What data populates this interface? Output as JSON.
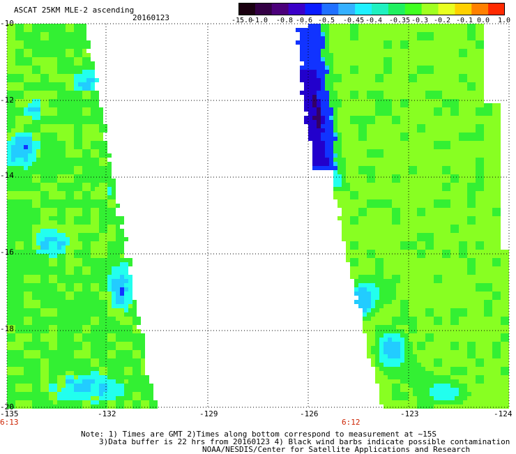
{
  "header": {
    "title": "ASCAT 25KM MLE-2 ascending",
    "date": "20160123"
  },
  "colorbar": {
    "labels": [
      "-15.0",
      "-1.0",
      "-0.8",
      "-0.6",
      "-0.5",
      "-0.45",
      "-0.4",
      "-0.35",
      "-0.3",
      "-0.2",
      "-0.1",
      "0.0",
      "1.0"
    ],
    "colors": [
      "#1a0010",
      "#330044",
      "#4b007a",
      "#3a00c8",
      "#0a1cff",
      "#2070ff",
      "#35b0ff",
      "#20f0ff",
      "#20f0c0",
      "#20f060",
      "#40ff20",
      "#a0ff20",
      "#e8ff20",
      "#ffd000",
      "#ff8000",
      "#ff2a00"
    ]
  },
  "map": {
    "lon_range": [
      -135,
      -124
    ],
    "lat_range": [
      -20,
      -10
    ],
    "lon_ticks": [
      "-135",
      "-132",
      "-129",
      "-126",
      "-123",
      "-124"
    ],
    "lat_ticks": [
      "-10",
      "-12",
      "-14",
      "-16",
      "-18",
      "-20"
    ],
    "pass_times": [
      "6:13",
      "6:12"
    ],
    "colors": {
      "green": "#33f033",
      "lime": "#88ff22",
      "cyan": "#22ffee",
      "aqua": "#22ccff",
      "blue": "#1133ff",
      "deep_blue": "#2200cc",
      "violet": "#330066"
    }
  },
  "footer": {
    "line1": "Note: 1) Times are GMT 2)Times along bottom correspond to measurement at ~15S",
    "line2": "3)Data buffer is 22 hrs from 20160123 4) Black wind barbs indicate possible contamination",
    "line3": "NOAA/NESDIS/Center for Satellite Applications and Research"
  }
}
